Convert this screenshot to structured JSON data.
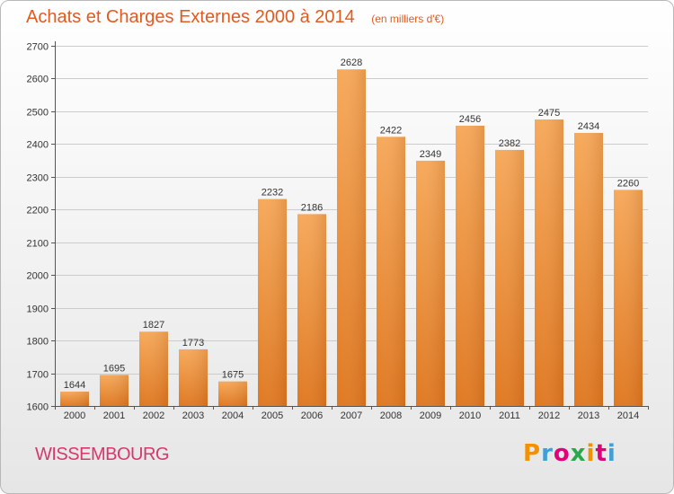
{
  "header": {
    "title": "Achats et Charges Externes 2000 à 2014",
    "subtitle": "(en milliers d'€)"
  },
  "footer": {
    "commune": "WISSEMBOURG",
    "logo_text": "Proxiti",
    "logo_colors": [
      "#f39200",
      "#3f9fd6",
      "#e2007a",
      "#2ba84a",
      "#f39200",
      "#e2007a",
      "#3f9fd6"
    ]
  },
  "colors": {
    "bar_light": "#f7a95a",
    "bar_dark": "#e07820",
    "grid": "#cccccc",
    "axis": "#555555",
    "title": "#e35a1f",
    "commune": "#d6386a"
  },
  "chart_data": {
    "type": "bar",
    "title": "Achats et Charges Externes 2000 à 2014",
    "subtitle": "(en milliers d'€)",
    "categories": [
      "2000",
      "2001",
      "2002",
      "2003",
      "2004",
      "2005",
      "2006",
      "2007",
      "2008",
      "2009",
      "2010",
      "2011",
      "2012",
      "2013",
      "2014"
    ],
    "values": [
      1644,
      1695,
      1827,
      1773,
      1675,
      2232,
      2186,
      2628,
      2422,
      2349,
      2456,
      2382,
      2475,
      2434,
      2260
    ],
    "ylim": [
      1600,
      2700
    ],
    "yticks": [
      1600,
      1700,
      1800,
      1900,
      2000,
      2100,
      2200,
      2300,
      2400,
      2500,
      2600,
      2700
    ],
    "grid": true,
    "data_labels": true
  }
}
